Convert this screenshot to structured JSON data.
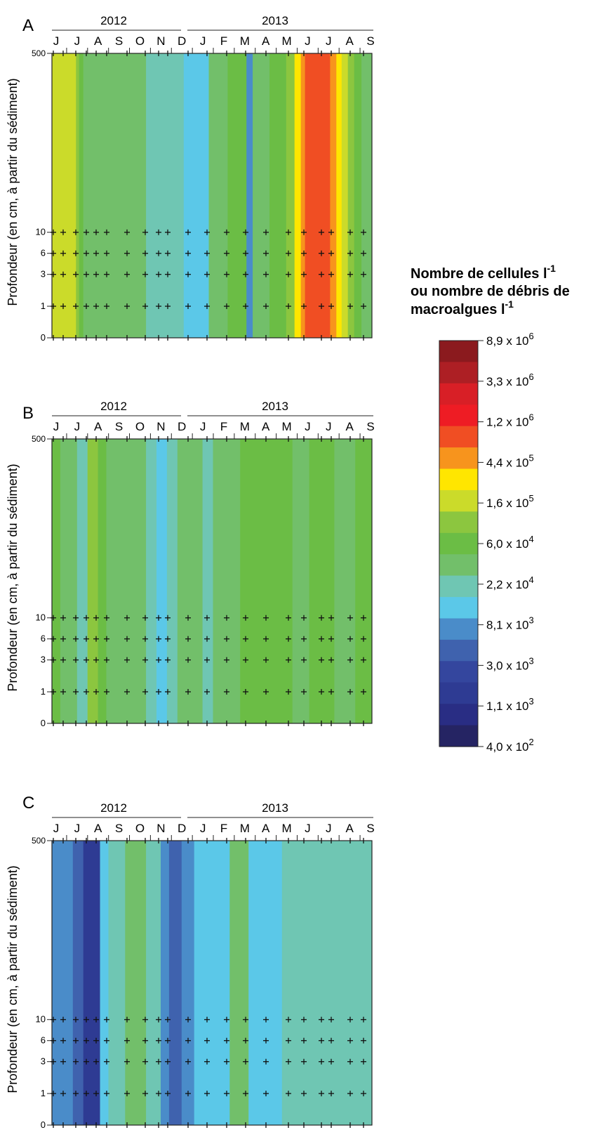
{
  "chart_data": [
    {
      "type": "heatmap",
      "panel_label": "A",
      "years": [
        "2012",
        "2013"
      ],
      "x_month_labels": [
        "J",
        "J",
        "A",
        "S",
        "O",
        "N",
        "D",
        "J",
        "F",
        "M",
        "A",
        "M",
        "J",
        "J",
        "A",
        "S"
      ],
      "y_tick_labels": [
        "500",
        "10",
        "6",
        "3",
        "1",
        "0"
      ],
      "ylabel": "Profondeur (en cm, à partir du sédiment)",
      "bands": [
        {
          "from": 0.0,
          "to": 1.15,
          "level": 9
        },
        {
          "from": 1.15,
          "to": 1.3,
          "level": 8
        },
        {
          "from": 1.3,
          "to": 1.5,
          "level": 7
        },
        {
          "from": 1.5,
          "to": 4.5,
          "level": 6
        },
        {
          "from": 4.5,
          "to": 6.3,
          "level": 5
        },
        {
          "from": 6.3,
          "to": 7.5,
          "level": 4
        },
        {
          "from": 7.5,
          "to": 8.4,
          "level": 6
        },
        {
          "from": 8.4,
          "to": 9.3,
          "level": 7
        },
        {
          "from": 9.3,
          "to": 9.6,
          "level": 3
        },
        {
          "from": 9.6,
          "to": 10.4,
          "level": 6
        },
        {
          "from": 10.4,
          "to": 11.2,
          "level": 7
        },
        {
          "from": 11.2,
          "to": 11.6,
          "level": 8
        },
        {
          "from": 11.6,
          "to": 11.9,
          "level": 10
        },
        {
          "from": 11.9,
          "to": 12.1,
          "level": 11
        },
        {
          "from": 12.1,
          "to": 13.3,
          "level": 12
        },
        {
          "from": 13.3,
          "to": 13.6,
          "level": 11
        },
        {
          "from": 13.6,
          "to": 13.85,
          "level": 10
        },
        {
          "from": 13.85,
          "to": 14.15,
          "level": 9
        },
        {
          "from": 14.15,
          "to": 14.45,
          "level": 8
        },
        {
          "from": 14.45,
          "to": 14.8,
          "level": 7
        },
        {
          "from": 14.8,
          "to": 15.3,
          "level": 6
        }
      ]
    },
    {
      "type": "heatmap",
      "panel_label": "B",
      "years": [
        "2012",
        "2013"
      ],
      "x_month_labels": [
        "J",
        "J",
        "A",
        "S",
        "O",
        "N",
        "D",
        "J",
        "F",
        "M",
        "A",
        "M",
        "J",
        "J",
        "A",
        "S"
      ],
      "y_tick_labels": [
        "500",
        "10",
        "6",
        "3",
        "1",
        "0"
      ],
      "ylabel": "Profondeur (en cm, à partir du sédiment)",
      "bands": [
        {
          "from": 0.0,
          "to": 0.4,
          "level": 7
        },
        {
          "from": 0.4,
          "to": 1.2,
          "level": 6
        },
        {
          "from": 1.2,
          "to": 1.7,
          "level": 5
        },
        {
          "from": 1.7,
          "to": 2.2,
          "level": 8
        },
        {
          "from": 2.2,
          "to": 2.6,
          "level": 7
        },
        {
          "from": 2.6,
          "to": 4.5,
          "level": 6
        },
        {
          "from": 4.5,
          "to": 5.0,
          "level": 5
        },
        {
          "from": 5.0,
          "to": 5.5,
          "level": 4
        },
        {
          "from": 5.5,
          "to": 6.0,
          "level": 5
        },
        {
          "from": 6.0,
          "to": 7.2,
          "level": 6
        },
        {
          "from": 7.2,
          "to": 7.7,
          "level": 5
        },
        {
          "from": 7.7,
          "to": 9.0,
          "level": 6
        },
        {
          "from": 9.0,
          "to": 11.5,
          "level": 7
        },
        {
          "from": 11.5,
          "to": 12.3,
          "level": 6
        },
        {
          "from": 12.3,
          "to": 13.5,
          "level": 7
        },
        {
          "from": 13.5,
          "to": 14.5,
          "level": 6
        },
        {
          "from": 14.5,
          "to": 15.3,
          "level": 7
        }
      ]
    },
    {
      "type": "heatmap",
      "panel_label": "C",
      "years": [
        "2012",
        "2013"
      ],
      "x_month_labels": [
        "J",
        "J",
        "A",
        "S",
        "O",
        "N",
        "D",
        "J",
        "F",
        "M",
        "A",
        "M",
        "J",
        "J",
        "A",
        "S"
      ],
      "y_tick_labels": [
        "500",
        "10",
        "6",
        "3",
        "1",
        "0"
      ],
      "ylabel": "Profondeur (en cm, à partir du sédiment)",
      "bands": [
        {
          "from": 0.0,
          "to": 1.0,
          "level": 3
        },
        {
          "from": 1.0,
          "to": 1.5,
          "level": 2
        },
        {
          "from": 1.5,
          "to": 2.3,
          "level": 1
        },
        {
          "from": 2.3,
          "to": 2.7,
          "level": 4
        },
        {
          "from": 2.7,
          "to": 3.5,
          "level": 5
        },
        {
          "from": 3.5,
          "to": 4.5,
          "level": 6
        },
        {
          "from": 4.5,
          "to": 5.2,
          "level": 5
        },
        {
          "from": 5.2,
          "to": 5.6,
          "level": 3
        },
        {
          "from": 5.6,
          "to": 6.2,
          "level": 2
        },
        {
          "from": 6.2,
          "to": 6.8,
          "level": 3
        },
        {
          "from": 6.8,
          "to": 8.5,
          "level": 4
        },
        {
          "from": 8.5,
          "to": 9.4,
          "level": 6
        },
        {
          "from": 9.4,
          "to": 11.0,
          "level": 4
        },
        {
          "from": 11.0,
          "to": 15.3,
          "level": 5
        }
      ]
    }
  ],
  "legend": {
    "title_line1": "Nombre de cellules l",
    "title_line1_sup": "-1",
    "title_line2": "ou nombre de débris de",
    "title_line3": "macroalgues l",
    "title_line3_sup": "-1",
    "labels": [
      {
        "mant": "8,9 x 10",
        "exp": "6"
      },
      {
        "mant": "3,3 x 10",
        "exp": "6"
      },
      {
        "mant": "1,2 x 10",
        "exp": "6"
      },
      {
        "mant": "4,4 x 10",
        "exp": "5"
      },
      {
        "mant": "1,6 x 10",
        "exp": "5"
      },
      {
        "mant": "6,0 x 10",
        "exp": "4"
      },
      {
        "mant": "2,2 x 10",
        "exp": "4"
      },
      {
        "mant": "8,1 x 10",
        "exp": "3"
      },
      {
        "mant": "3,0 x 10",
        "exp": "3"
      },
      {
        "mant": "1,1 x 10",
        "exp": "3"
      },
      {
        "mant": "4,0 x 10",
        "exp": "2"
      }
    ],
    "colors": [
      "#8b1a1e",
      "#ad1f24",
      "#d81f26",
      "#ee1c24",
      "#f04e23",
      "#f7941d",
      "#ffe600",
      "#cbdb2a",
      "#8cc63f",
      "#6bbd45",
      "#72bf6a",
      "#6fc6b3",
      "#5bc8e8",
      "#4a8cc9",
      "#3f62ae",
      "#34469e",
      "#2e3b93",
      "#292d84",
      "#252463"
    ],
    "color_levels": [
      "#252463",
      "#2e3b93",
      "#3f62ae",
      "#4a8cc9",
      "#5bc8e8",
      "#6fc6b3",
      "#72bf6a",
      "#6bbd45",
      "#8cc63f",
      "#cbdb2a",
      "#ffe600",
      "#f7941d",
      "#f04e23",
      "#ee1c24",
      "#d81f26",
      "#ad1f24",
      "#8b1a1e"
    ]
  }
}
